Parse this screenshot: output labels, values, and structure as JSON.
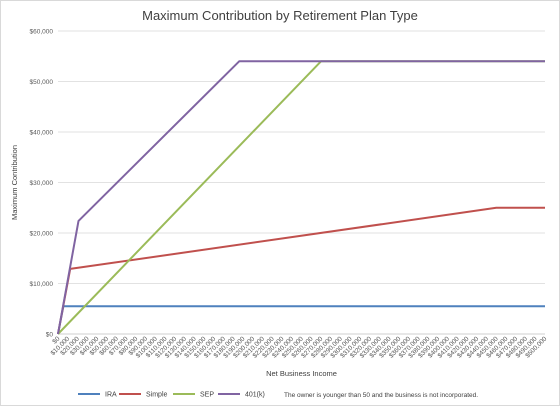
{
  "chart_data": {
    "type": "line",
    "title": "Maximum Contribution by Retirement Plan Type",
    "xlabel": "Net Business Income",
    "ylabel": "Maximum Contribution",
    "y_ticks": [
      "$0",
      "$10,000",
      "$20,000",
      "$30,000",
      "$40,000",
      "$50,000",
      "$60,000"
    ],
    "y_tick_values": [
      0,
      10000,
      20000,
      30000,
      40000,
      50000,
      60000
    ],
    "ylim": [
      0,
      60000
    ],
    "x_ticks": [
      "$0",
      "$10,000",
      "$20,000",
      "$30,000",
      "$40,000",
      "$50,000",
      "$60,000",
      "$70,000",
      "$80,000",
      "$90,000",
      "$100,000",
      "$110,000",
      "$120,000",
      "$130,000",
      "$140,000",
      "$150,000",
      "$160,000",
      "$170,000",
      "$180,000",
      "$190,000",
      "$200,000",
      "$210,000",
      "$220,000",
      "$230,000",
      "$240,000",
      "$250,000",
      "$260,000",
      "$270,000",
      "$280,000",
      "$290,000",
      "$300,000",
      "$310,000",
      "$320,000",
      "$330,000",
      "$340,000",
      "$350,000",
      "$360,000",
      "$370,000",
      "$380,000",
      "$390,000",
      "$400,000",
      "$410,000",
      "$420,000",
      "$430,000",
      "$440,000",
      "$450,000",
      "$460,000",
      "$470,000",
      "$480,000",
      "$490,000",
      "$500,000"
    ],
    "xlim": [
      0,
      500000
    ],
    "grid": "horizontal",
    "legend_position": "bottom",
    "series": [
      {
        "name": "IRA",
        "color": "#4f81bd",
        "points": [
          [
            0,
            0
          ],
          [
            5500,
            5500
          ],
          [
            500000,
            5500
          ]
        ]
      },
      {
        "name": "Simple",
        "color": "#c0504d",
        "points": [
          [
            0,
            0
          ],
          [
            12500,
            12900
          ],
          [
            450000,
            25000
          ],
          [
            500000,
            25000
          ]
        ]
      },
      {
        "name": "SEP",
        "color": "#9bbb59",
        "points": [
          [
            0,
            0
          ],
          [
            270000,
            54000
          ],
          [
            500000,
            54000
          ]
        ]
      },
      {
        "name": "401(k)",
        "color": "#8064a2",
        "points": [
          [
            0,
            0
          ],
          [
            21000,
            22400
          ],
          [
            186000,
            54000
          ],
          [
            500000,
            54000
          ]
        ]
      }
    ],
    "note": "The owner is younger than 50 and the business is not incorporated."
  }
}
